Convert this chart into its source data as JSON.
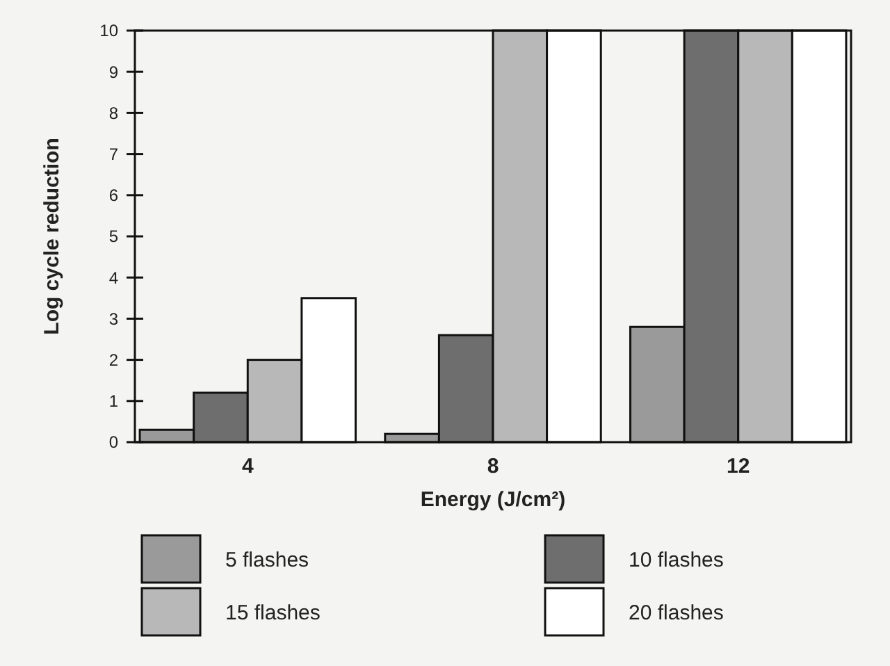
{
  "chart_data": {
    "type": "bar",
    "xlabel": "Energy (J/cm²)",
    "ylabel": "Log cycle reduction",
    "categories": [
      "4",
      "8",
      "12"
    ],
    "series": [
      {
        "name": "5 flashes",
        "color": "#9a9a9a",
        "values": [
          0.3,
          0.2,
          2.8
        ]
      },
      {
        "name": "10 flashes",
        "color": "#6e6e6e",
        "values": [
          1.2,
          2.6,
          10
        ]
      },
      {
        "name": "15 flashes",
        "color": "#b8b8b8",
        "values": [
          2.0,
          10,
          10
        ]
      },
      {
        "name": "20 flashes",
        "color": "#ffffff",
        "values": [
          3.5,
          10,
          10
        ]
      }
    ],
    "ylim": [
      0,
      10
    ],
    "yticks": [
      0,
      1,
      2,
      3,
      4,
      5,
      6,
      7,
      8,
      9,
      10
    ],
    "legend": "bottom",
    "grid": false
  }
}
